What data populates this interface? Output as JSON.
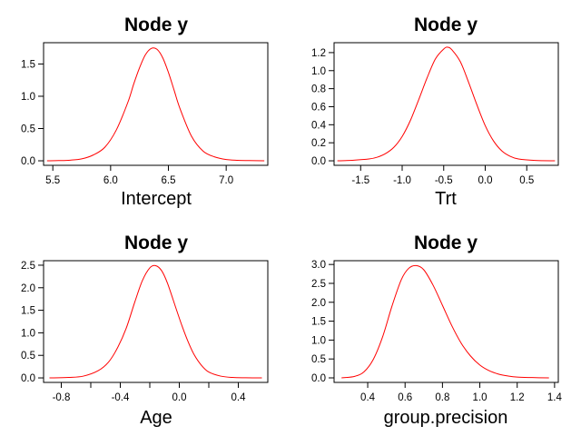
{
  "chart_data": [
    {
      "type": "line",
      "title": "Node y",
      "xlabel": "Intercept",
      "ylabel": "",
      "color": "#ff0000",
      "grid": false,
      "xlim": [
        5.42,
        7.36
      ],
      "ylim": [
        -0.07,
        1.83
      ],
      "xticks": [
        5.5,
        6.0,
        6.5,
        7.0
      ],
      "xtick_labels": [
        "5.5",
        "6.0",
        "6.5",
        "7.0"
      ],
      "yticks": [
        0.0,
        0.5,
        1.0,
        1.5
      ],
      "ytick_labels": [
        "0.0",
        "0.5",
        "1.0",
        "1.5"
      ],
      "series": [
        {
          "x": [
            5.45,
            5.55,
            5.65,
            5.75,
            5.85,
            5.95,
            6.05,
            6.15,
            6.2,
            6.25,
            6.3,
            6.35,
            6.4,
            6.45,
            6.5,
            6.55,
            6.6,
            6.7,
            6.8,
            6.9,
            7.0,
            7.1,
            7.2,
            7.33
          ],
          "y": [
            0.0,
            0.003,
            0.01,
            0.03,
            0.09,
            0.21,
            0.48,
            0.91,
            1.19,
            1.44,
            1.64,
            1.74,
            1.73,
            1.6,
            1.37,
            1.09,
            0.81,
            0.38,
            0.15,
            0.06,
            0.02,
            0.008,
            0.003,
            0.0
          ]
        }
      ]
    },
    {
      "type": "line",
      "title": "Node y",
      "xlabel": "Trt",
      "ylabel": "",
      "color": "#ff0000",
      "grid": false,
      "xlim": [
        -1.82,
        0.88
      ],
      "ylim": [
        -0.05,
        1.31
      ],
      "xticks": [
        -1.5,
        -1.0,
        -0.5,
        0.0,
        0.5
      ],
      "xtick_labels": [
        "-1.5",
        "-1.0",
        "-0.5",
        "0.0",
        "0.5"
      ],
      "yticks": [
        0.0,
        0.2,
        0.4,
        0.6,
        0.8,
        1.0,
        1.2
      ],
      "ytick_labels": [
        "0.0",
        "0.2",
        "0.4",
        "0.6",
        "0.8",
        "1.0",
        "1.2"
      ],
      "series": [
        {
          "x": [
            -1.78,
            -1.6,
            -1.4,
            -1.3,
            -1.2,
            -1.1,
            -1.0,
            -0.9,
            -0.8,
            -0.7,
            -0.6,
            -0.5,
            -0.45,
            -0.4,
            -0.3,
            -0.2,
            -0.1,
            0.0,
            0.1,
            0.2,
            0.3,
            0.4,
            0.6,
            0.84
          ],
          "y": [
            0.0,
            0.006,
            0.02,
            0.04,
            0.08,
            0.15,
            0.27,
            0.45,
            0.68,
            0.92,
            1.13,
            1.24,
            1.26,
            1.23,
            1.1,
            0.87,
            0.62,
            0.39,
            0.22,
            0.11,
            0.05,
            0.02,
            0.004,
            0.0
          ]
        }
      ]
    },
    {
      "type": "line",
      "title": "Node y",
      "xlabel": "Age",
      "ylabel": "",
      "color": "#ff0000",
      "grid": false,
      "xlim": [
        -0.92,
        0.6
      ],
      "ylim": [
        -0.1,
        2.6
      ],
      "xticks": [
        -0.8,
        -0.6,
        -0.4,
        -0.2,
        0.0,
        0.2,
        0.4
      ],
      "xtick_labels": [
        "-0.8",
        "",
        "-0.4",
        "",
        "0.0",
        "",
        "0.4"
      ],
      "yticks": [
        0.0,
        0.5,
        1.0,
        1.5,
        2.0,
        2.5
      ],
      "ytick_labels": [
        "0.0",
        "0.5",
        "1.0",
        "1.5",
        "2.0",
        "2.5"
      ],
      "series": [
        {
          "x": [
            -0.88,
            -0.75,
            -0.65,
            -0.55,
            -0.48,
            -0.42,
            -0.36,
            -0.3,
            -0.25,
            -0.2,
            -0.16,
            -0.12,
            -0.08,
            -0.02,
            0.02,
            0.06,
            0.1,
            0.15,
            0.2,
            0.28,
            0.36,
            0.45,
            0.56
          ],
          "y": [
            0.0,
            0.01,
            0.04,
            0.16,
            0.35,
            0.66,
            1.1,
            1.7,
            2.16,
            2.44,
            2.49,
            2.38,
            2.1,
            1.52,
            1.14,
            0.8,
            0.52,
            0.28,
            0.13,
            0.04,
            0.01,
            0.003,
            0.0
          ]
        }
      ]
    },
    {
      "type": "line",
      "title": "Node y",
      "xlabel": "group.precision",
      "ylabel": "",
      "color": "#ff0000",
      "grid": false,
      "xlim": [
        0.22,
        1.42
      ],
      "ylim": [
        -0.12,
        3.1
      ],
      "xticks": [
        0.4,
        0.6,
        0.8,
        1.0,
        1.2,
        1.4
      ],
      "xtick_labels": [
        "0.4",
        "0.6",
        "0.8",
        "1.0",
        "1.2",
        "1.4"
      ],
      "yticks": [
        0.0,
        0.5,
        1.0,
        1.5,
        2.0,
        2.5,
        3.0
      ],
      "ytick_labels": [
        "0.0",
        "0.5",
        "1.0",
        "1.5",
        "2.0",
        "2.5",
        "3.0"
      ],
      "series": [
        {
          "x": [
            0.26,
            0.33,
            0.38,
            0.43,
            0.48,
            0.53,
            0.58,
            0.62,
            0.66,
            0.7,
            0.75,
            0.8,
            0.85,
            0.9,
            0.95,
            1.0,
            1.05,
            1.1,
            1.15,
            1.2,
            1.28,
            1.37
          ],
          "y": [
            0.0,
            0.04,
            0.16,
            0.49,
            1.09,
            1.9,
            2.6,
            2.9,
            2.97,
            2.86,
            2.45,
            1.92,
            1.38,
            0.92,
            0.58,
            0.34,
            0.19,
            0.1,
            0.05,
            0.02,
            0.008,
            0.0
          ]
        }
      ]
    }
  ]
}
